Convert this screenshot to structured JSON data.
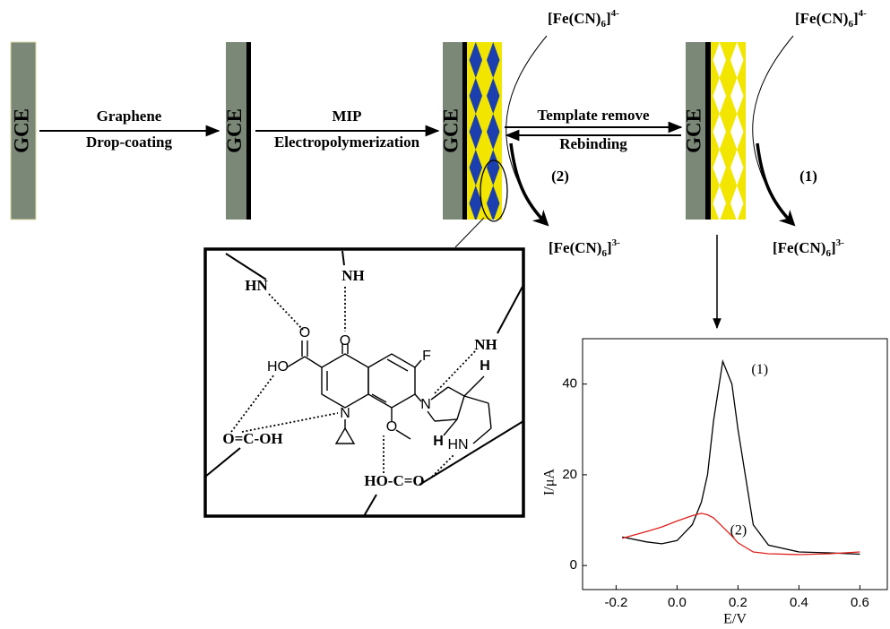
{
  "electrodes": [
    {
      "label": "GCE"
    },
    {
      "label": "GCE"
    },
    {
      "label": "GCE"
    },
    {
      "label": "GCE"
    }
  ],
  "steps": [
    {
      "lines": [
        "Graphene",
        "Drop-coating"
      ]
    },
    {
      "lines": [
        "MIP",
        "Electropolymerization"
      ]
    },
    {
      "lines": [
        "Template remove",
        "Rebinding"
      ]
    }
  ],
  "redox": [
    {
      "tag": "(2)",
      "reduced": {
        "prefix": "[Fe(CN)",
        "sub": "6",
        "close": "]",
        "sup": "4-"
      },
      "oxidized": {
        "prefix": "[Fe(CN)",
        "sub": "6",
        "close": "]",
        "sup": "3-"
      }
    },
    {
      "tag": "(1)",
      "reduced": {
        "prefix": "[Fe(CN)",
        "sub": "6",
        "close": "]",
        "sup": "4-"
      },
      "oxidized": {
        "prefix": "[Fe(CN)",
        "sub": "6",
        "close": "]",
        "sup": "3-"
      }
    }
  ],
  "molecule": {
    "atoms": [
      "O",
      "O",
      "HO",
      "F",
      "N",
      "N",
      "O",
      "H",
      "H",
      "HN"
    ],
    "partners": [
      "HN",
      "NH",
      "NH",
      "O=C-OH",
      "HO-C=O"
    ]
  },
  "chart_data": {
    "type": "line",
    "xlabel": "E/V",
    "ylabel": "I/μA",
    "x": [
      -0.18,
      -0.1,
      -0.05,
      0,
      0.05,
      0.08,
      0.1,
      0.12,
      0.15,
      0.18,
      0.2,
      0.25,
      0.3,
      0.4,
      0.5,
      0.6
    ],
    "series": [
      {
        "name": "(1)",
        "color": "#000000",
        "values": [
          6.3,
          5.2,
          4.8,
          5.5,
          9,
          14,
          20,
          32,
          45,
          40,
          30,
          9,
          4.5,
          3,
          2.8,
          2.5
        ]
      },
      {
        "name": "(2)",
        "color": "#e0201c",
        "values": [
          6,
          7.5,
          8.5,
          9.8,
          11,
          11.5,
          11.2,
          10.5,
          8.5,
          6.5,
          5,
          3,
          2.6,
          2.4,
          2.6,
          3
        ]
      }
    ],
    "xlim": [
      -0.31,
      0.69
    ],
    "ylim": [
      -5.3,
      50
    ],
    "xticks": [
      -0.2,
      {
        "value": 0,
        "label": "0.0"
      },
      0.2,
      0.4,
      0.6
    ],
    "yticks": [
      0,
      20,
      40
    ]
  }
}
